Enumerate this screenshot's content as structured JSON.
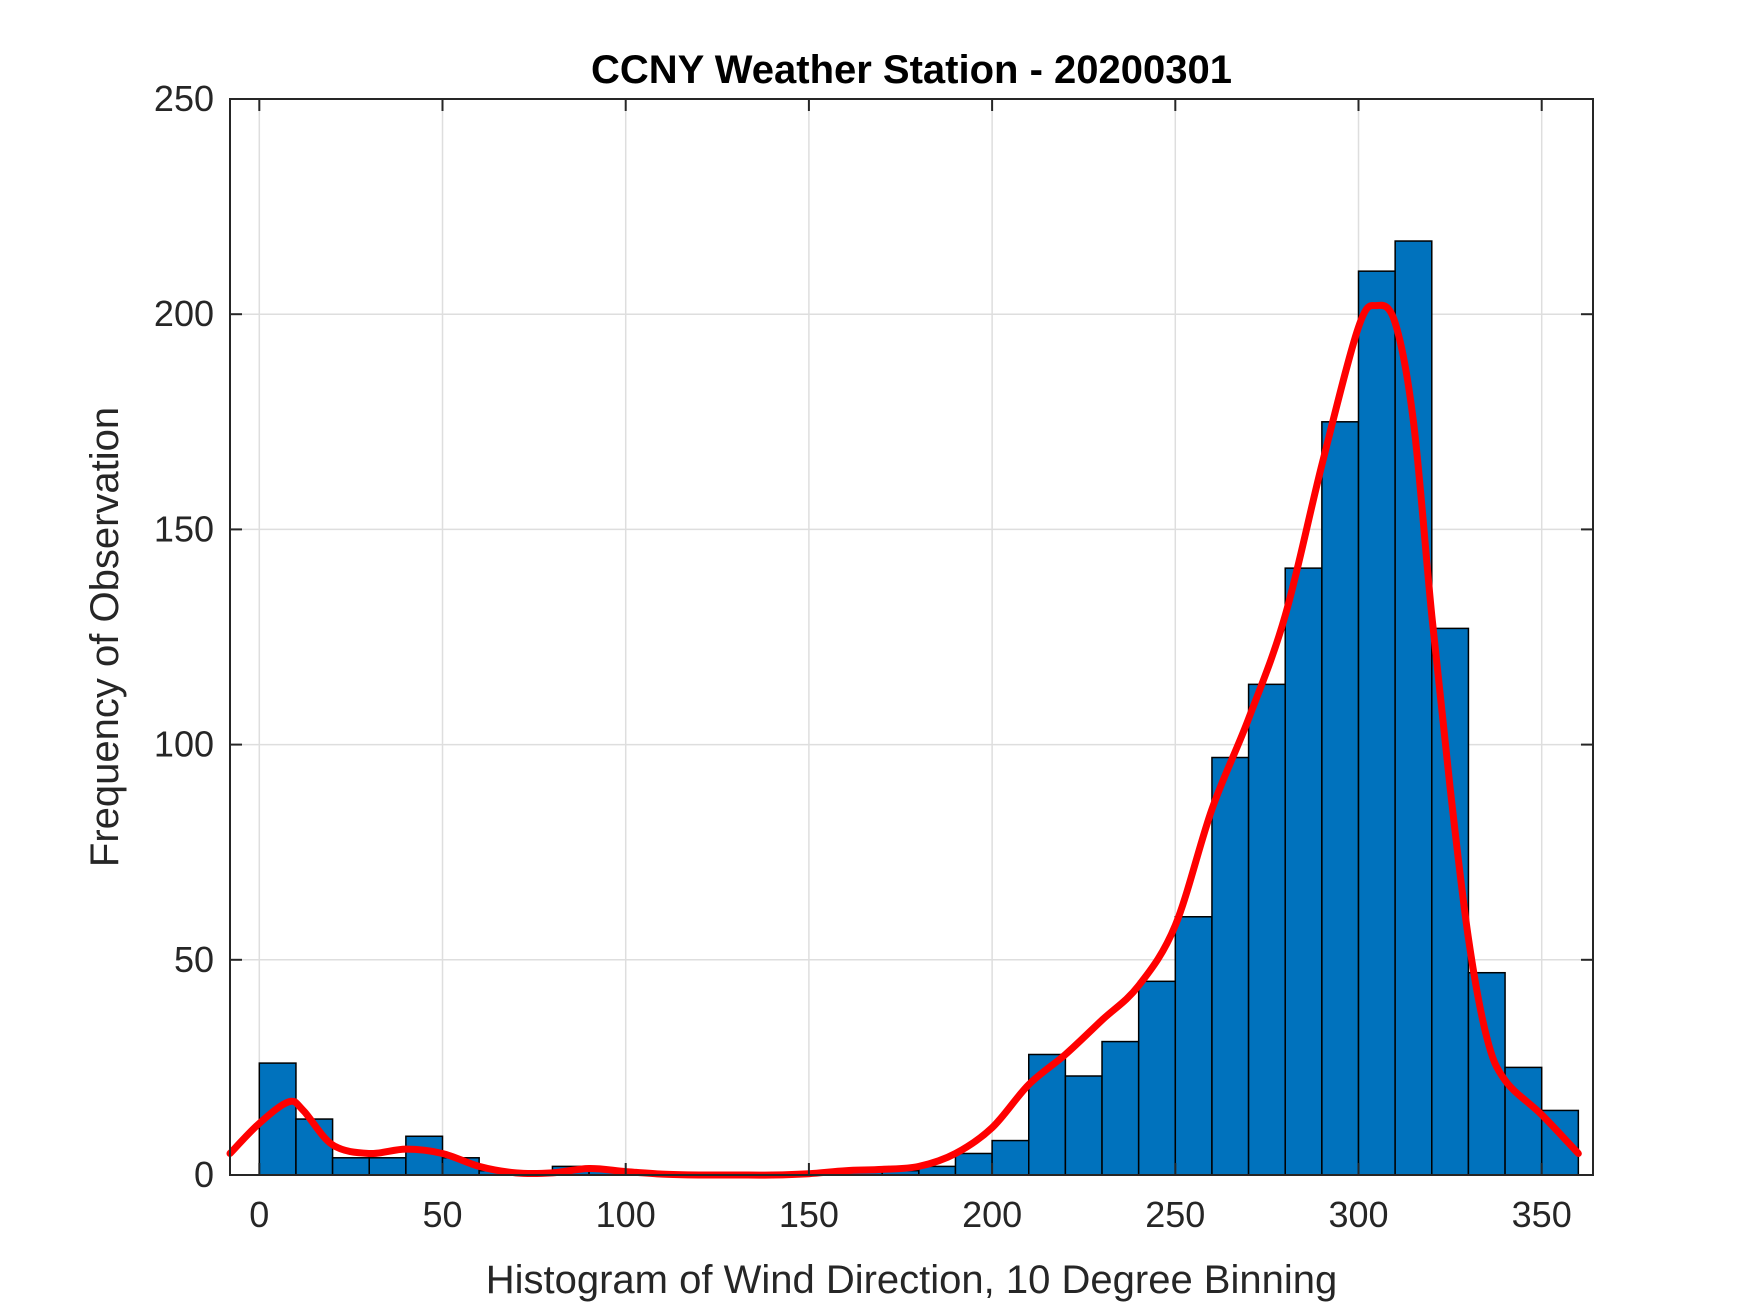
{
  "chart_data": {
    "type": "bar",
    "title": "CCNY Weather Station - 20200301",
    "xlabel": "Histogram of Wind Direction, 10 Degree Binning",
    "ylabel": "Frequency of Observation",
    "xlim": [
      -8,
      364
    ],
    "ylim": [
      0,
      250
    ],
    "xticks": [
      0,
      50,
      100,
      150,
      200,
      250,
      300,
      350
    ],
    "yticks": [
      0,
      50,
      100,
      150,
      200,
      250
    ],
    "grid": true,
    "bin_width": 10,
    "bin_edges": [
      0,
      10,
      20,
      30,
      40,
      50,
      60,
      70,
      80,
      90,
      100,
      110,
      120,
      130,
      140,
      150,
      160,
      170,
      180,
      190,
      200,
      210,
      220,
      230,
      240,
      250,
      260,
      270,
      280,
      290,
      300,
      310,
      320,
      330,
      340,
      350,
      360
    ],
    "values": [
      26,
      13,
      4,
      4,
      9,
      4,
      1,
      0,
      2,
      1,
      0,
      0,
      0,
      0,
      0,
      0,
      1,
      1,
      2,
      5,
      8,
      28,
      23,
      31,
      45,
      60,
      97,
      114,
      141,
      175,
      210,
      217,
      127,
      47,
      25,
      15
    ],
    "series": [
      {
        "type": "line",
        "x": [
          -8,
          0,
          8,
          12,
          20,
          30,
          40,
          50,
          60,
          70,
          80,
          90,
          100,
          110,
          120,
          130,
          140,
          150,
          160,
          170,
          180,
          190,
          200,
          210,
          220,
          230,
          240,
          250,
          260,
          270,
          280,
          290,
          300,
          305,
          310,
          315,
          320,
          325,
          330,
          335,
          340,
          350,
          360
        ],
        "y": [
          5,
          12,
          17,
          15,
          7,
          5,
          6,
          5,
          2,
          0.5,
          0.5,
          1.5,
          0.8,
          0.2,
          0,
          0,
          0,
          0.3,
          1,
          1.3,
          2,
          5,
          11,
          21,
          28,
          36,
          44,
          58,
          85,
          106,
          130,
          165,
          197,
          202,
          198,
          175,
          130,
          90,
          55,
          32,
          22,
          14,
          5
        ]
      }
    ],
    "colors": {
      "bar_fill": "#0072BD",
      "bar_edge": "#000000",
      "curve": "#FF0000",
      "grid": "#DEDEDE",
      "axis": "#262626"
    }
  }
}
